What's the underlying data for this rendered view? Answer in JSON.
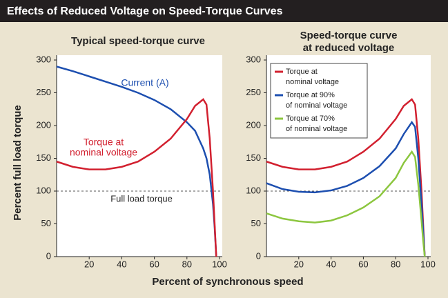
{
  "title": "Effects of Reduced Voltage on Speed-Torque Curves",
  "x_label": "Percent of synchronous speed",
  "y_label": "Percent full load torque",
  "chart_data": [
    {
      "type": "line",
      "title": [
        "Typical speed-torque curve"
      ],
      "xlim": [
        0,
        100
      ],
      "ylim": [
        0,
        300
      ],
      "xticks": [
        20,
        40,
        60,
        80,
        100
      ],
      "yticks": [
        0,
        50,
        100,
        150,
        200,
        250,
        300
      ],
      "reference_line": 100,
      "reference_label": "Full load torque",
      "x": [
        0,
        10,
        20,
        30,
        40,
        50,
        60,
        70,
        80,
        85,
        90,
        92,
        94,
        96,
        97,
        98
      ],
      "series": [
        {
          "name": [
            "Current (A)"
          ],
          "color": "#1d4fb0",
          "values": [
            290,
            283,
            275,
            267,
            259,
            250,
            239,
            225,
            205,
            192,
            165,
            150,
            125,
            80,
            45,
            0
          ]
        },
        {
          "name": [
            "Torque at",
            "nominal voltage"
          ],
          "color": "#d2202f",
          "values": [
            145,
            137,
            133,
            133,
            137,
            145,
            160,
            180,
            210,
            230,
            240,
            232,
            180,
            100,
            50,
            0
          ]
        }
      ]
    },
    {
      "type": "line",
      "title": [
        "Speed-torque curve",
        "at reduced voltage"
      ],
      "xlim": [
        0,
        100
      ],
      "ylim": [
        0,
        300
      ],
      "xticks": [
        20,
        40,
        60,
        80,
        100
      ],
      "yticks": [
        0,
        50,
        100,
        150,
        200,
        250,
        300
      ],
      "reference_line": 100,
      "legend": "upper left",
      "x": [
        0,
        10,
        20,
        30,
        40,
        50,
        60,
        70,
        80,
        85,
        90,
        92,
        94,
        96,
        97,
        98
      ],
      "series": [
        {
          "name": [
            "Torque at",
            "nominal voltage"
          ],
          "color": "#d2202f",
          "values": [
            145,
            137,
            133,
            133,
            137,
            145,
            160,
            180,
            210,
            230,
            240,
            232,
            180,
            100,
            50,
            0
          ]
        },
        {
          "name": [
            "Torque at 90%",
            "of nominal voltage"
          ],
          "color": "#1d4fb0",
          "values": [
            112,
            103,
            99,
            98,
            101,
            108,
            120,
            138,
            165,
            187,
            205,
            198,
            150,
            80,
            40,
            0
          ]
        },
        {
          "name": [
            "Torque at 70%",
            "of nominal voltage"
          ],
          "color": "#8cc63f",
          "values": [
            66,
            58,
            54,
            52,
            55,
            63,
            75,
            92,
            120,
            143,
            160,
            152,
            110,
            55,
            25,
            0
          ]
        }
      ]
    }
  ]
}
